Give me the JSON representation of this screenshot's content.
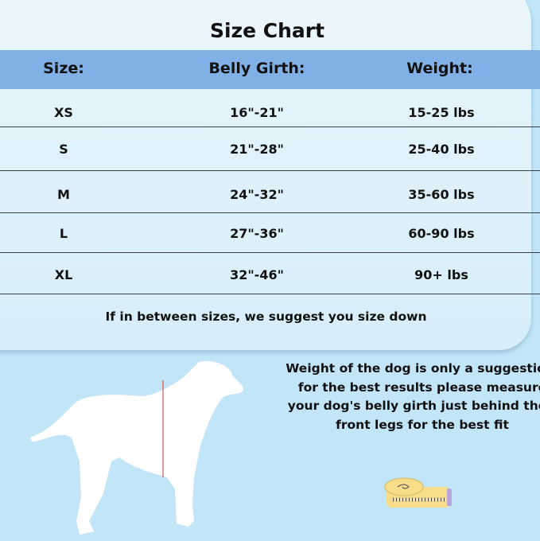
{
  "title": "Size Chart",
  "headers": {
    "size": "Size:",
    "girth": "Belly Girth:",
    "weight": "Weight:"
  },
  "rows": [
    {
      "size": "XS",
      "girth": "16\"-21\"",
      "weight": "15-25 lbs"
    },
    {
      "size": "S",
      "girth": "21\"-28\"",
      "weight": "25-40 lbs"
    },
    {
      "size": "M",
      "girth": "24\"-32\"",
      "weight": "35-60 lbs"
    },
    {
      "size": "L",
      "girth": "27\"-36\"",
      "weight": "60-90 lbs"
    },
    {
      "size": "XL",
      "girth": "32\"-46\"",
      "weight": "90+ lbs"
    }
  ],
  "note": "If in between sizes, we suggest you size down",
  "advice": "Weight of the dog is only a suggestion, for the best results please measure your dog's belly girth just behind their front legs for the best fit",
  "icons": {
    "dog": "dog-silhouette-icon",
    "tape": "measuring-tape-icon"
  },
  "colors": {
    "background": "#c2e6f8",
    "header": "#80b0e5",
    "measure_line": "#d9534f",
    "tape": "#f7dc8a"
  }
}
